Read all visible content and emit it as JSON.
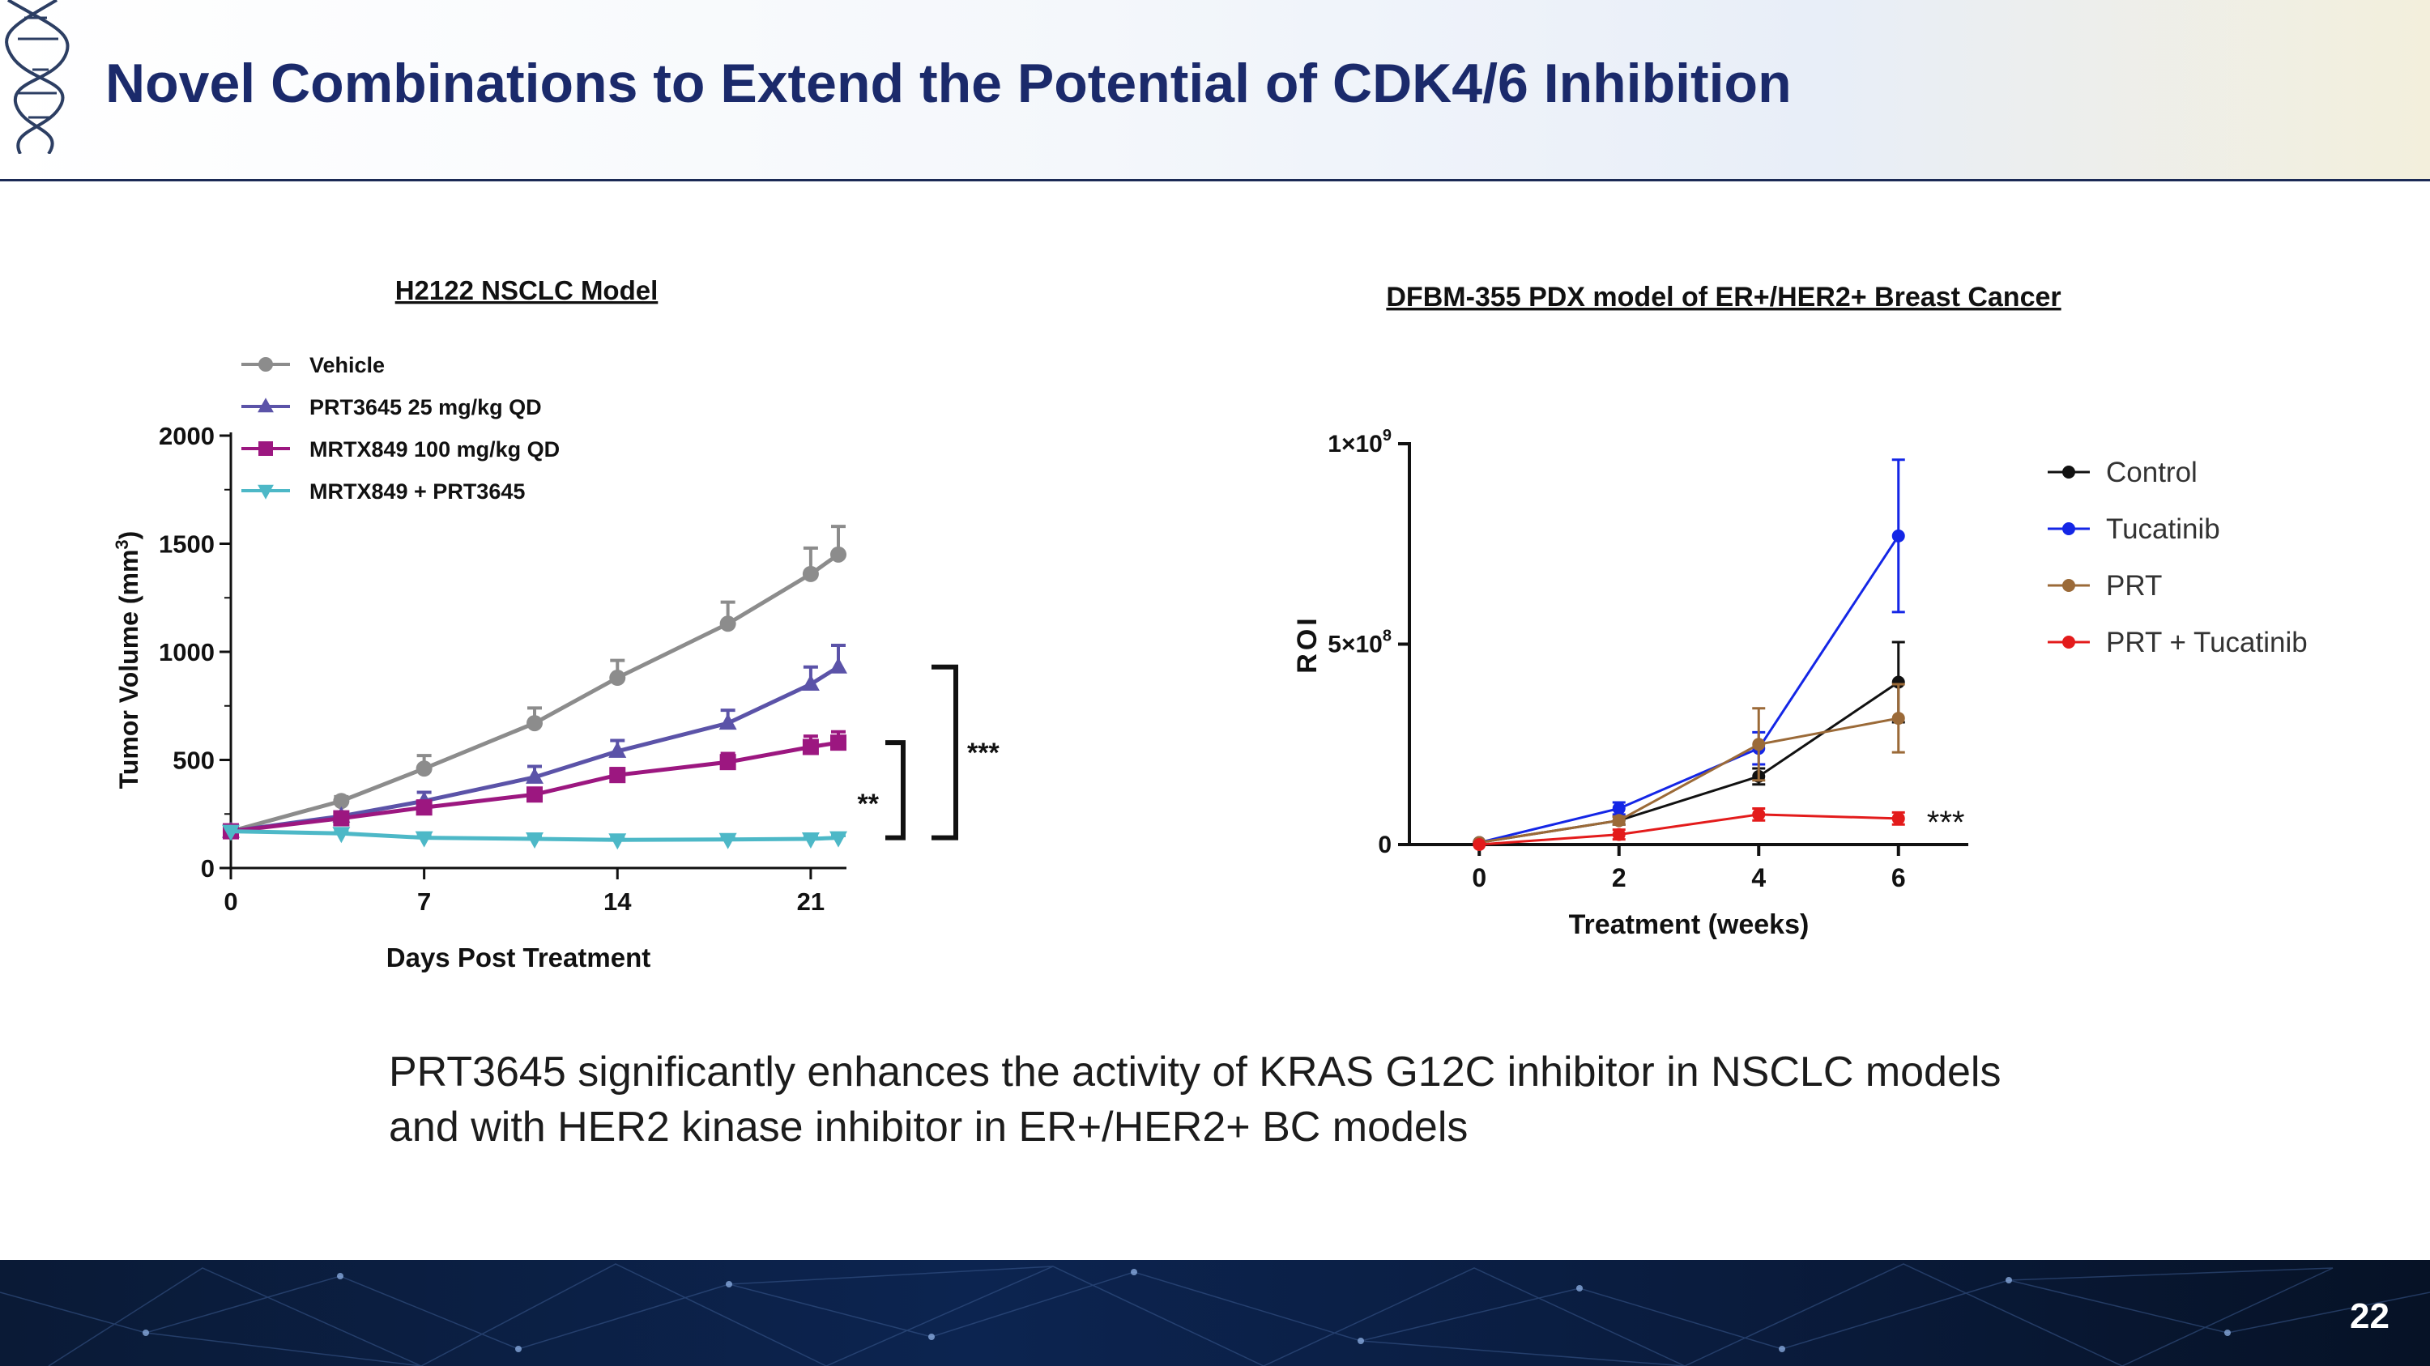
{
  "slide": {
    "title": "Novel Combinations to Extend the Potential of CDK4/6 Inhibition",
    "body_lines": [
      "PRT3645 significantly enhances the activity of KRAS G12C inhibitor in NSCLC models",
      "and with HER2 kinase inhibitor in ER+/HER2+ BC models"
    ],
    "page_number": "22"
  },
  "chart_data": [
    {
      "type": "line",
      "title": "H2122 NSCLC Model",
      "xlabel": "Days Post Treatment",
      "ylabel": "Tumor Volume (mm",
      "ylabel_sup": "3",
      "ylabel_close": ")",
      "xlim": [
        0,
        22
      ],
      "ylim": [
        0,
        2000
      ],
      "xticks": [
        0,
        7,
        14,
        21
      ],
      "yticks": [
        0,
        500,
        1000,
        1500,
        2000
      ],
      "legend_position": "top-left",
      "series": [
        {
          "name": "Vehicle",
          "color": "#8c8c8c",
          "marker": "circle",
          "x": [
            0,
            4,
            7,
            11,
            14,
            18,
            21,
            22
          ],
          "y": [
            170,
            310,
            460,
            670,
            880,
            1130,
            1360,
            1450
          ],
          "err": [
            0,
            20,
            60,
            70,
            80,
            100,
            120,
            130
          ]
        },
        {
          "name": "PRT3645 25 mg/kg QD",
          "color": "#5b53a8",
          "marker": "triangle-up",
          "x": [
            0,
            4,
            7,
            11,
            14,
            18,
            21,
            22
          ],
          "y": [
            170,
            240,
            310,
            420,
            540,
            670,
            850,
            930
          ],
          "err": [
            0,
            15,
            40,
            50,
            50,
            60,
            80,
            100
          ]
        },
        {
          "name": "MRTX849 100 mg/kg QD",
          "color": "#9c1780",
          "marker": "square",
          "x": [
            0,
            4,
            7,
            11,
            14,
            18,
            21,
            22
          ],
          "y": [
            170,
            230,
            280,
            340,
            430,
            490,
            560,
            580
          ],
          "err": [
            0,
            15,
            30,
            25,
            30,
            40,
            50,
            50
          ]
        },
        {
          "name": "MRTX849 + PRT3645",
          "color": "#4db8c7",
          "marker": "triangle-down",
          "x": [
            0,
            4,
            7,
            11,
            14,
            18,
            21,
            22
          ],
          "y": [
            170,
            160,
            140,
            135,
            130,
            132,
            135,
            140
          ],
          "err": [
            0,
            10,
            10,
            10,
            10,
            10,
            10,
            10
          ]
        }
      ],
      "annotations": [
        {
          "text": "**",
          "from": 580,
          "to": 140
        },
        {
          "text": "***",
          "from": 930,
          "to": 140
        }
      ]
    },
    {
      "type": "line",
      "title": "DFBM-355 PDX model of ER+/HER2+ Breast Cancer",
      "xlabel": "Treatment (weeks)",
      "ylabel": "ROI",
      "xlim": [
        -1,
        7
      ],
      "ylim": [
        0,
        1000000000
      ],
      "xticks": [
        0,
        2,
        4,
        6
      ],
      "ytick_labels": [
        {
          "value": 0,
          "base": "0",
          "exp": ""
        },
        {
          "value": 500000000,
          "base": "5×10",
          "exp": "8"
        },
        {
          "value": 1000000000,
          "base": "1×10",
          "exp": "9"
        }
      ],
      "legend_position": "right",
      "series": [
        {
          "name": "Control",
          "color": "#111111",
          "marker": "circle",
          "x": [
            0,
            2,
            4,
            6
          ],
          "y": [
            5000000,
            60000000,
            170000000,
            405000000
          ],
          "err": [
            0,
            10000000,
            20000000,
            100000000
          ]
        },
        {
          "name": "Tucatinib",
          "color": "#1426e6",
          "marker": "circle",
          "x": [
            0,
            2,
            4,
            6
          ],
          "y": [
            5000000,
            90000000,
            240000000,
            770000000
          ],
          "err": [
            0,
            15000000,
            40000000,
            190000000
          ]
        },
        {
          "name": "PRT",
          "color": "#9b6a38",
          "marker": "circle",
          "x": [
            0,
            2,
            4,
            6
          ],
          "y": [
            5000000,
            60000000,
            250000000,
            315000000
          ],
          "err": [
            0,
            10000000,
            90000000,
            85000000
          ]
        },
        {
          "name": "PRT + Tucatinib",
          "color": "#e31b1b",
          "marker": "circle",
          "x": [
            0,
            2,
            4,
            6
          ],
          "y": [
            0,
            25000000,
            75000000,
            65000000
          ],
          "err": [
            0,
            12000000,
            15000000,
            15000000
          ]
        }
      ],
      "annotations": [
        {
          "text": "***",
          "series": "PRT + Tucatinib"
        }
      ]
    }
  ]
}
